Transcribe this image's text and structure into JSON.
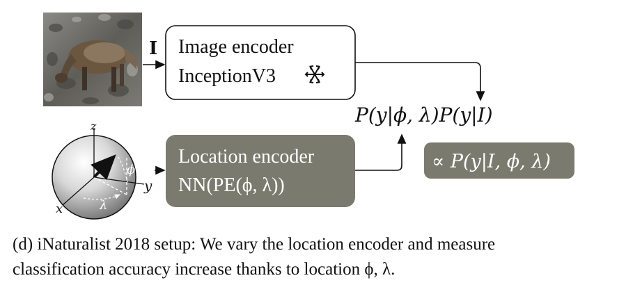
{
  "image_input": {
    "symbol": "I"
  },
  "image_encoder": {
    "title": "Image encoder",
    "model": "InceptionV3",
    "frozen_icon": "snowflake-icon"
  },
  "location_encoder": {
    "title": "Location encoder",
    "formula": "NN(PE(ϕ, λ))"
  },
  "globe": {
    "axis_z": "z",
    "axis_y": "y",
    "axis_x": "x",
    "lat_symbol": "ϕ",
    "lon_symbol": "λ"
  },
  "product_formula": "P(y|ϕ, λ)P(y|I)",
  "result_formula": "∝ P(y|I, ϕ, λ)",
  "caption": {
    "line1": "(d) iNaturalist 2018 setup: We vary the location encoder and measure",
    "line2": "classification accuracy increase thanks to location ϕ, λ."
  },
  "colors": {
    "encoder_box_dark": "#7a7a6e",
    "encoder_box_light_border": "#111111",
    "text_on_dark": "#ffffff"
  }
}
